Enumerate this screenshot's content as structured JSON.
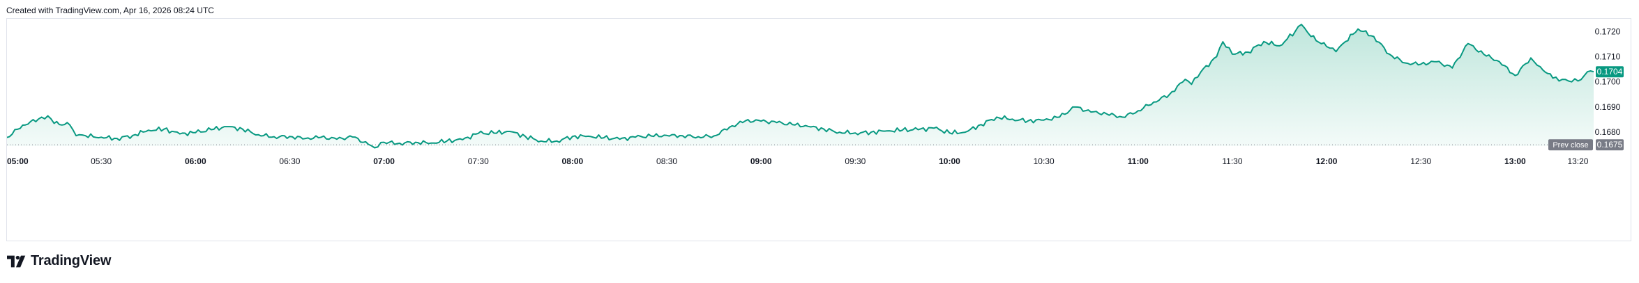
{
  "header": {
    "created_text": "Created with TradingView.com, Apr 16, 2026 08:24 UTC"
  },
  "brand": {
    "name": "TradingView",
    "icon": "tradingview-logo-icon"
  },
  "colors": {
    "line": "#089981",
    "fill_top": "#bfe6dc",
    "fill_bottom": "#f4fbf9",
    "prev_close_label": "#787b86",
    "last_price_label": "#089981",
    "text": "#131722",
    "axis_text": "#131722",
    "border": "#e0e3eb"
  },
  "chart_data": {
    "type": "area",
    "xlabel": "",
    "ylabel": "",
    "ylim": [
      0.16745,
      0.17245
    ],
    "x_range": [
      "05:00",
      "13:25"
    ],
    "x_ticks": [
      {
        "time": "05:00",
        "label": "05:00",
        "bold": true
      },
      {
        "time": "05:30",
        "label": "05:30",
        "bold": false
      },
      {
        "time": "06:00",
        "label": "06:00",
        "bold": true
      },
      {
        "time": "06:30",
        "label": "06:30",
        "bold": false
      },
      {
        "time": "07:00",
        "label": "07:00",
        "bold": true
      },
      {
        "time": "07:30",
        "label": "07:30",
        "bold": false
      },
      {
        "time": "08:00",
        "label": "08:00",
        "bold": true
      },
      {
        "time": "08:30",
        "label": "08:30",
        "bold": false
      },
      {
        "time": "09:00",
        "label": "09:00",
        "bold": true
      },
      {
        "time": "09:30",
        "label": "09:30",
        "bold": false
      },
      {
        "time": "10:00",
        "label": "10:00",
        "bold": true
      },
      {
        "time": "10:30",
        "label": "10:30",
        "bold": false
      },
      {
        "time": "11:00",
        "label": "11:00",
        "bold": true
      },
      {
        "time": "11:30",
        "label": "11:30",
        "bold": false
      },
      {
        "time": "12:00",
        "label": "12:00",
        "bold": true
      },
      {
        "time": "12:30",
        "label": "12:30",
        "bold": false
      },
      {
        "time": "13:00",
        "label": "13:00",
        "bold": true
      },
      {
        "time": "13:20",
        "label": "13:20",
        "bold": false
      }
    ],
    "y_ticks": [
      "0.1720",
      "0.1710",
      "0.1700",
      "0.1690",
      "0.1680"
    ],
    "prev_close": {
      "label": "Prev close",
      "value": 0.1675,
      "value_label": "0.1675"
    },
    "last_price": {
      "value": 0.1704,
      "label": "0.1704"
    },
    "grid": false,
    "series": [
      {
        "points": [
          [
            "05:00",
            0.16779
          ],
          [
            "05:05",
            0.16828
          ],
          [
            "05:10",
            0.16852
          ],
          [
            "05:13",
            0.16865
          ],
          [
            "05:15",
            0.16835
          ],
          [
            "05:20",
            0.16829
          ],
          [
            "05:22",
            0.16786
          ],
          [
            "05:25",
            0.16786
          ],
          [
            "05:30",
            0.1678
          ],
          [
            "05:35",
            0.16775
          ],
          [
            "05:40",
            0.16787
          ],
          [
            "05:45",
            0.16808
          ],
          [
            "05:50",
            0.16812
          ],
          [
            "05:55",
            0.16793
          ],
          [
            "06:00",
            0.16798
          ],
          [
            "06:05",
            0.1681
          ],
          [
            "06:10",
            0.16822
          ],
          [
            "06:15",
            0.16812
          ],
          [
            "06:20",
            0.1679
          ],
          [
            "06:25",
            0.16782
          ],
          [
            "06:30",
            0.16783
          ],
          [
            "06:35",
            0.16775
          ],
          [
            "06:40",
            0.1678
          ],
          [
            "06:45",
            0.16772
          ],
          [
            "06:50",
            0.16781
          ],
          [
            "06:55",
            0.16752
          ],
          [
            "06:57",
            0.16738
          ],
          [
            "07:00",
            0.1676
          ],
          [
            "07:05",
            0.16756
          ],
          [
            "07:10",
            0.1676
          ],
          [
            "07:15",
            0.16757
          ],
          [
            "07:20",
            0.16765
          ],
          [
            "07:25",
            0.1677
          ],
          [
            "07:30",
            0.16795
          ],
          [
            "07:35",
            0.16796
          ],
          [
            "07:40",
            0.16803
          ],
          [
            "07:45",
            0.16783
          ],
          [
            "07:50",
            0.16765
          ],
          [
            "07:55",
            0.16765
          ],
          [
            "08:00",
            0.16783
          ],
          [
            "08:05",
            0.16784
          ],
          [
            "08:10",
            0.16778
          ],
          [
            "08:15",
            0.16772
          ],
          [
            "08:20",
            0.1678
          ],
          [
            "08:25",
            0.16785
          ],
          [
            "08:30",
            0.16787
          ],
          [
            "08:35",
            0.16786
          ],
          [
            "08:40",
            0.16782
          ],
          [
            "08:45",
            0.16785
          ],
          [
            "08:50",
            0.1682
          ],
          [
            "08:55",
            0.16845
          ],
          [
            "09:00",
            0.16844
          ],
          [
            "09:05",
            0.16838
          ],
          [
            "09:10",
            0.1683
          ],
          [
            "09:15",
            0.16823
          ],
          [
            "09:20",
            0.16812
          ],
          [
            "09:25",
            0.168
          ],
          [
            "09:30",
            0.16797
          ],
          [
            "09:35",
            0.168
          ],
          [
            "09:40",
            0.16805
          ],
          [
            "09:45",
            0.16808
          ],
          [
            "09:50",
            0.1681
          ],
          [
            "09:55",
            0.16816
          ],
          [
            "10:00",
            0.16797
          ],
          [
            "10:05",
            0.168
          ],
          [
            "10:10",
            0.1683
          ],
          [
            "10:15",
            0.1686
          ],
          [
            "10:20",
            0.16852
          ],
          [
            "10:25",
            0.16845
          ],
          [
            "10:30",
            0.16848
          ],
          [
            "10:35",
            0.1686
          ],
          [
            "10:40",
            0.169
          ],
          [
            "10:45",
            0.1688
          ],
          [
            "10:50",
            0.16873
          ],
          [
            "10:55",
            0.1686
          ],
          [
            "11:00",
            0.16885
          ],
          [
            "11:05",
            0.1692
          ],
          [
            "11:10",
            0.1695
          ],
          [
            "11:15",
            0.1701
          ],
          [
            "11:17",
            0.1699
          ],
          [
            "11:20",
            0.1704
          ],
          [
            "11:25",
            0.171
          ],
          [
            "11:27",
            0.17159
          ],
          [
            "11:30",
            0.1711
          ],
          [
            "11:35",
            0.17118
          ],
          [
            "11:40",
            0.1716
          ],
          [
            "11:45",
            0.17143
          ],
          [
            "11:50",
            0.172
          ],
          [
            "11:52",
            0.17228
          ],
          [
            "11:55",
            0.1718
          ],
          [
            "12:00",
            0.1714
          ],
          [
            "12:03",
            0.1712
          ],
          [
            "12:06",
            0.1716
          ],
          [
            "12:10",
            0.1721
          ],
          [
            "12:15",
            0.1718
          ],
          [
            "12:20",
            0.1711
          ],
          [
            "12:25",
            0.17075
          ],
          [
            "12:30",
            0.1707
          ],
          [
            "12:35",
            0.1708
          ],
          [
            "12:40",
            0.17055
          ],
          [
            "12:45",
            0.17152
          ],
          [
            "12:50",
            0.1711
          ],
          [
            "12:55",
            0.1708
          ],
          [
            "13:00",
            0.17025
          ],
          [
            "13:05",
            0.17095
          ],
          [
            "13:08",
            0.1706
          ],
          [
            "13:12",
            0.17015
          ],
          [
            "13:15",
            0.1701
          ],
          [
            "13:18",
            0.17
          ],
          [
            "13:21",
            0.17009
          ],
          [
            "13:23",
            0.1704
          ],
          [
            "13:25",
            0.1704
          ]
        ]
      }
    ]
  }
}
